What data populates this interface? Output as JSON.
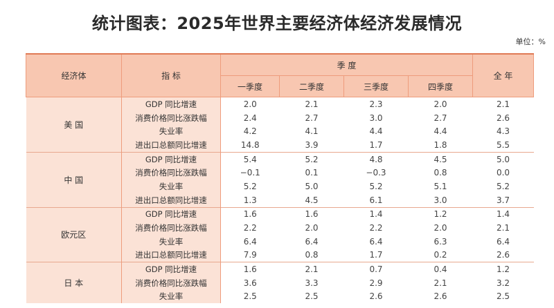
{
  "title": "统计图表：2025年世界主要经济体经济发展情况",
  "unit": "单位：%",
  "header": {
    "economy": "经济体",
    "indicator": "指 标",
    "quarter_group": "季 度",
    "quarters": [
      "一季度",
      "二季度",
      "三季度",
      "四季度"
    ],
    "full_year": "全 年"
  },
  "colors": {
    "header_bg": "#f8c7b1",
    "label_bg": "#fbe2d6",
    "line": "#ee9c7c"
  },
  "economies": [
    {
      "name": "美 国",
      "rows": [
        {
          "indicator": "GDP 同比增速",
          "values": [
            "2.0",
            "2.1",
            "2.3",
            "2.0",
            "2.1"
          ]
        },
        {
          "indicator": "消费价格同比涨跌幅",
          "values": [
            "2.4",
            "2.7",
            "3.0",
            "2.7",
            "2.6"
          ]
        },
        {
          "indicator": "失业率",
          "values": [
            "4.2",
            "4.1",
            "4.4",
            "4.4",
            "4.3"
          ]
        },
        {
          "indicator": "进出口总额同比增速",
          "values": [
            "14.8",
            "3.9",
            "1.7",
            "1.8",
            "5.5"
          ]
        }
      ]
    },
    {
      "name": "中 国",
      "rows": [
        {
          "indicator": "GDP 同比增速",
          "values": [
            "5.4",
            "5.2",
            "4.8",
            "4.5",
            "5.0"
          ]
        },
        {
          "indicator": "消费价格同比涨跌幅",
          "values": [
            "−0.1",
            "0.1",
            "−0.3",
            "0.8",
            "0.0"
          ]
        },
        {
          "indicator": "失业率",
          "values": [
            "5.2",
            "5.0",
            "5.2",
            "5.1",
            "5.2"
          ]
        },
        {
          "indicator": "进出口总额同比增速",
          "values": [
            "1.3",
            "4.5",
            "6.1",
            "3.0",
            "3.7"
          ]
        }
      ]
    },
    {
      "name": "欧元区",
      "rows": [
        {
          "indicator": "GDP 同比增速",
          "values": [
            "1.6",
            "1.6",
            "1.4",
            "1.2",
            "1.4"
          ]
        },
        {
          "indicator": "消费价格同比涨跌幅",
          "values": [
            "2.2",
            "2.0",
            "2.2",
            "2.0",
            "2.1"
          ]
        },
        {
          "indicator": "失业率",
          "values": [
            "6.4",
            "6.4",
            "6.4",
            "6.3",
            "6.4"
          ]
        },
        {
          "indicator": "进出口总额同比增速",
          "values": [
            "7.9",
            "0.8",
            "1.7",
            "0.2",
            "2.6"
          ]
        }
      ]
    },
    {
      "name": "日 本",
      "rows": [
        {
          "indicator": "GDP 同比增速",
          "values": [
            "1.6",
            "2.1",
            "0.7",
            "0.4",
            "1.2"
          ]
        },
        {
          "indicator": "消费价格同比涨跌幅",
          "values": [
            "3.6",
            "3.3",
            "2.9",
            "2.1",
            "3.2"
          ]
        },
        {
          "indicator": "失业率",
          "values": [
            "2.5",
            "2.5",
            "2.6",
            "2.6",
            "2.5"
          ]
        }
      ]
    }
  ]
}
